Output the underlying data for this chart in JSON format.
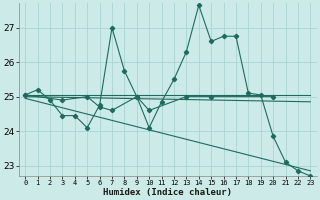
{
  "title": "",
  "xlabel": "Humidex (Indice chaleur)",
  "background_color": "#cceae7",
  "grid_color": "#aad4d0",
  "line_color": "#1e6b5e",
  "xlim": [
    -0.5,
    23.5
  ],
  "ylim": [
    22.7,
    27.7
  ],
  "yticks": [
    23,
    24,
    25,
    26,
    27
  ],
  "xticks": [
    0,
    1,
    2,
    3,
    4,
    5,
    6,
    7,
    8,
    9,
    10,
    11,
    12,
    13,
    14,
    15,
    16,
    17,
    18,
    19,
    20,
    21,
    22,
    23
  ],
  "series1_x": [
    0,
    1,
    2,
    3,
    4,
    5,
    6,
    7,
    8,
    9,
    10,
    11,
    12,
    13,
    14,
    15,
    16,
    17,
    18,
    19,
    20,
    21,
    22,
    23
  ],
  "series1_y": [
    25.05,
    25.2,
    24.9,
    24.45,
    24.45,
    24.1,
    24.75,
    27.0,
    25.75,
    25.0,
    24.1,
    24.85,
    25.5,
    26.3,
    27.65,
    26.6,
    26.75,
    26.75,
    25.1,
    25.05,
    23.85,
    23.1,
    22.85,
    22.7
  ],
  "series2_x": [
    0,
    3,
    5,
    6,
    7,
    9,
    10,
    13,
    15,
    20
  ],
  "series2_y": [
    25.05,
    24.9,
    25.0,
    24.7,
    24.6,
    25.0,
    24.6,
    25.0,
    25.0,
    25.0
  ],
  "series3_x": [
    0,
    23
  ],
  "series3_y": [
    25.05,
    25.05
  ],
  "series4_x": [
    0,
    23
  ],
  "series4_y": [
    25.0,
    24.85
  ],
  "series5_x": [
    0,
    23
  ],
  "series5_y": [
    24.95,
    22.85
  ],
  "lw": 0.8,
  "markersize": 2.2
}
